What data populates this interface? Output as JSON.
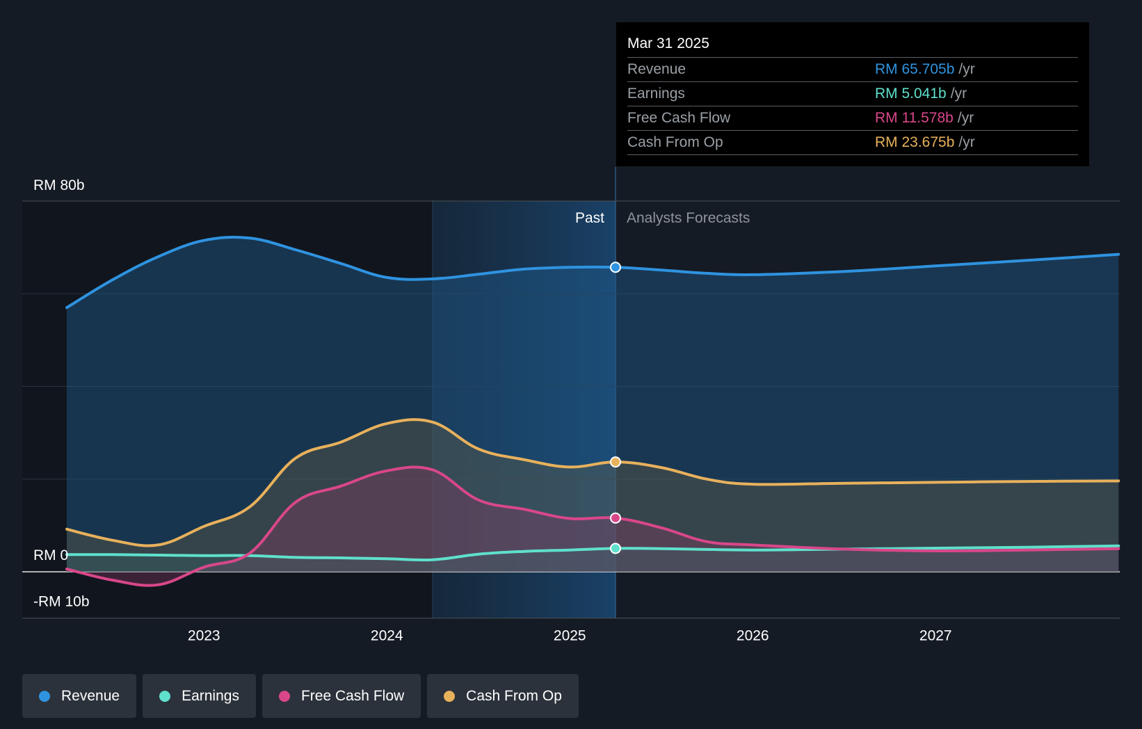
{
  "chart_data": {
    "type": "line",
    "currency_unit": "RM",
    "y_axis_labels": [
      "RM 80b",
      "RM 0",
      "-RM 10b"
    ],
    "ylim": [
      -10,
      80
    ],
    "x_ticks": [
      "2023",
      "2024",
      "2025",
      "2026",
      "2027"
    ],
    "x_tick_values": [
      2023,
      2024,
      2025,
      2026,
      2027
    ],
    "xlim": [
      2022.25,
      2028.0
    ],
    "past_label": "Past",
    "forecast_label": "Analysts Forecasts",
    "divider_x": 2025.25,
    "highlight_start": 2024.25,
    "series": [
      {
        "name": "Revenue",
        "color": "#2f93e0",
        "x": [
          2022.25,
          2022.5,
          2022.75,
          2023.0,
          2023.25,
          2023.5,
          2023.75,
          2024.0,
          2024.25,
          2024.5,
          2024.75,
          2025.0,
          2025.25,
          2025.5,
          2025.75,
          2026.0,
          2026.5,
          2027.0,
          2027.5,
          2028.0
        ],
        "values": [
          57,
          63,
          68,
          71.5,
          72,
          69.5,
          66.5,
          63.5,
          63.2,
          64.2,
          65.3,
          65.7,
          65.7,
          65.1,
          64.4,
          64.1,
          64.8,
          66,
          67.2,
          68.5
        ]
      },
      {
        "name": "Earnings",
        "color": "#5fe0cc",
        "x": [
          2022.25,
          2022.5,
          2022.75,
          2023.0,
          2023.25,
          2023.5,
          2023.75,
          2024.0,
          2024.25,
          2024.5,
          2024.75,
          2025.0,
          2025.25,
          2025.5,
          2026.0,
          2026.5,
          2027.0,
          2027.5,
          2028.0
        ],
        "values": [
          3.7,
          3.7,
          3.6,
          3.5,
          3.5,
          3.1,
          3.0,
          2.8,
          2.6,
          3.8,
          4.4,
          4.7,
          5.04,
          5.0,
          4.7,
          4.9,
          5.1,
          5.3,
          5.6
        ]
      },
      {
        "name": "Free Cash Flow",
        "color": "#d9478a",
        "x": [
          2022.25,
          2022.5,
          2022.75,
          2023.0,
          2023.25,
          2023.5,
          2023.75,
          2024.0,
          2024.25,
          2024.5,
          2024.75,
          2025.0,
          2025.25,
          2025.5,
          2025.75,
          2026.0,
          2026.5,
          2027.0,
          2027.5,
          2028.0
        ],
        "values": [
          0.6,
          -1.8,
          -2.8,
          1.0,
          4.0,
          15.0,
          18.5,
          21.8,
          22.0,
          15.5,
          13.5,
          11.5,
          11.6,
          9.5,
          6.5,
          5.8,
          4.9,
          4.5,
          4.7,
          5.0
        ]
      },
      {
        "name": "Cash From Op",
        "color": "#e8b15c",
        "x": [
          2022.25,
          2022.5,
          2022.75,
          2023.0,
          2023.25,
          2023.5,
          2023.75,
          2024.0,
          2024.25,
          2024.5,
          2024.75,
          2025.0,
          2025.25,
          2025.5,
          2025.75,
          2026.0,
          2026.5,
          2027.0,
          2027.5,
          2028.0
        ],
        "values": [
          9.2,
          6.8,
          5.8,
          9.8,
          14.0,
          24.5,
          28.0,
          32.0,
          32.3,
          26.5,
          24.2,
          22.6,
          23.7,
          22.5,
          20.0,
          18.9,
          19.1,
          19.3,
          19.5,
          19.6
        ]
      }
    ],
    "tooltip": {
      "date": "Mar 31 2025",
      "rows": [
        {
          "label": "Revenue",
          "value": "RM 65.705b",
          "unit": "/yr",
          "color": "#2f93e0"
        },
        {
          "label": "Earnings",
          "value": "RM 5.041b",
          "unit": "/yr",
          "color": "#5fe0cc"
        },
        {
          "label": "Free Cash Flow",
          "value": "RM 11.578b",
          "unit": "/yr",
          "color": "#d9478a"
        },
        {
          "label": "Cash From Op",
          "value": "RM 23.675b",
          "unit": "/yr",
          "color": "#e8b15c"
        }
      ]
    },
    "legend": [
      {
        "label": "Revenue",
        "color": "#2f93e0"
      },
      {
        "label": "Earnings",
        "color": "#5fe0cc"
      },
      {
        "label": "Free Cash Flow",
        "color": "#d9478a"
      },
      {
        "label": "Cash From Op",
        "color": "#e8b15c"
      }
    ]
  }
}
